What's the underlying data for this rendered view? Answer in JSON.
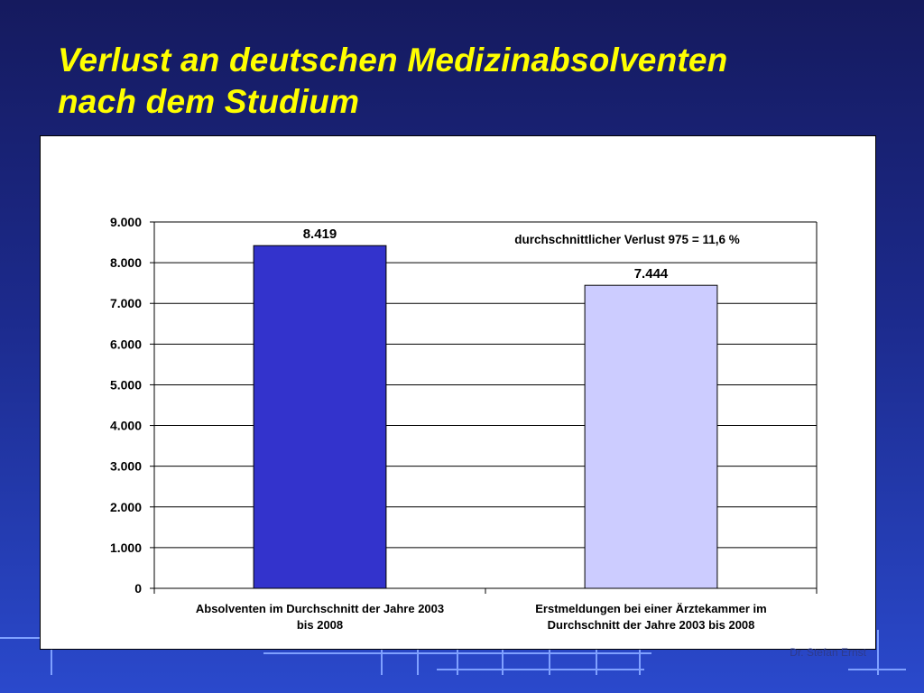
{
  "slide": {
    "title_line1": "Verlust an deutschen Medizinabsolventen",
    "title_line2": "nach dem Studium",
    "author": "Dr. Stefan Ernst"
  },
  "colors": {
    "title": "#ffff00",
    "bar_absolventen": "#3333cc",
    "bar_erstmeldungen": "#ccccff",
    "panel": "#ffffff"
  },
  "chart_data": {
    "type": "bar",
    "categories": [
      [
        "Absolventen im Durchschnitt der Jahre 2003",
        "bis 2008"
      ],
      [
        "Erstmeldungen bei einer Ärztekammer im",
        "Durchschnitt der Jahre 2003 bis 2008"
      ]
    ],
    "values": [
      8419,
      7444
    ],
    "value_labels": [
      "8.419",
      "7.444"
    ],
    "bar_colors": [
      "#3333cc",
      "#ccccff"
    ],
    "annotation": "durchschnittlicher Verlust 975 = 11,6 %",
    "ylim": [
      0,
      9000
    ],
    "yticks": [
      0,
      1000,
      2000,
      3000,
      4000,
      5000,
      6000,
      7000,
      8000,
      9000
    ],
    "ytick_labels": [
      "0",
      "1.000",
      "2.000",
      "3.000",
      "4.000",
      "5.000",
      "6.000",
      "7.000",
      "8.000",
      "9.000"
    ],
    "grid": true,
    "legend": "none"
  }
}
